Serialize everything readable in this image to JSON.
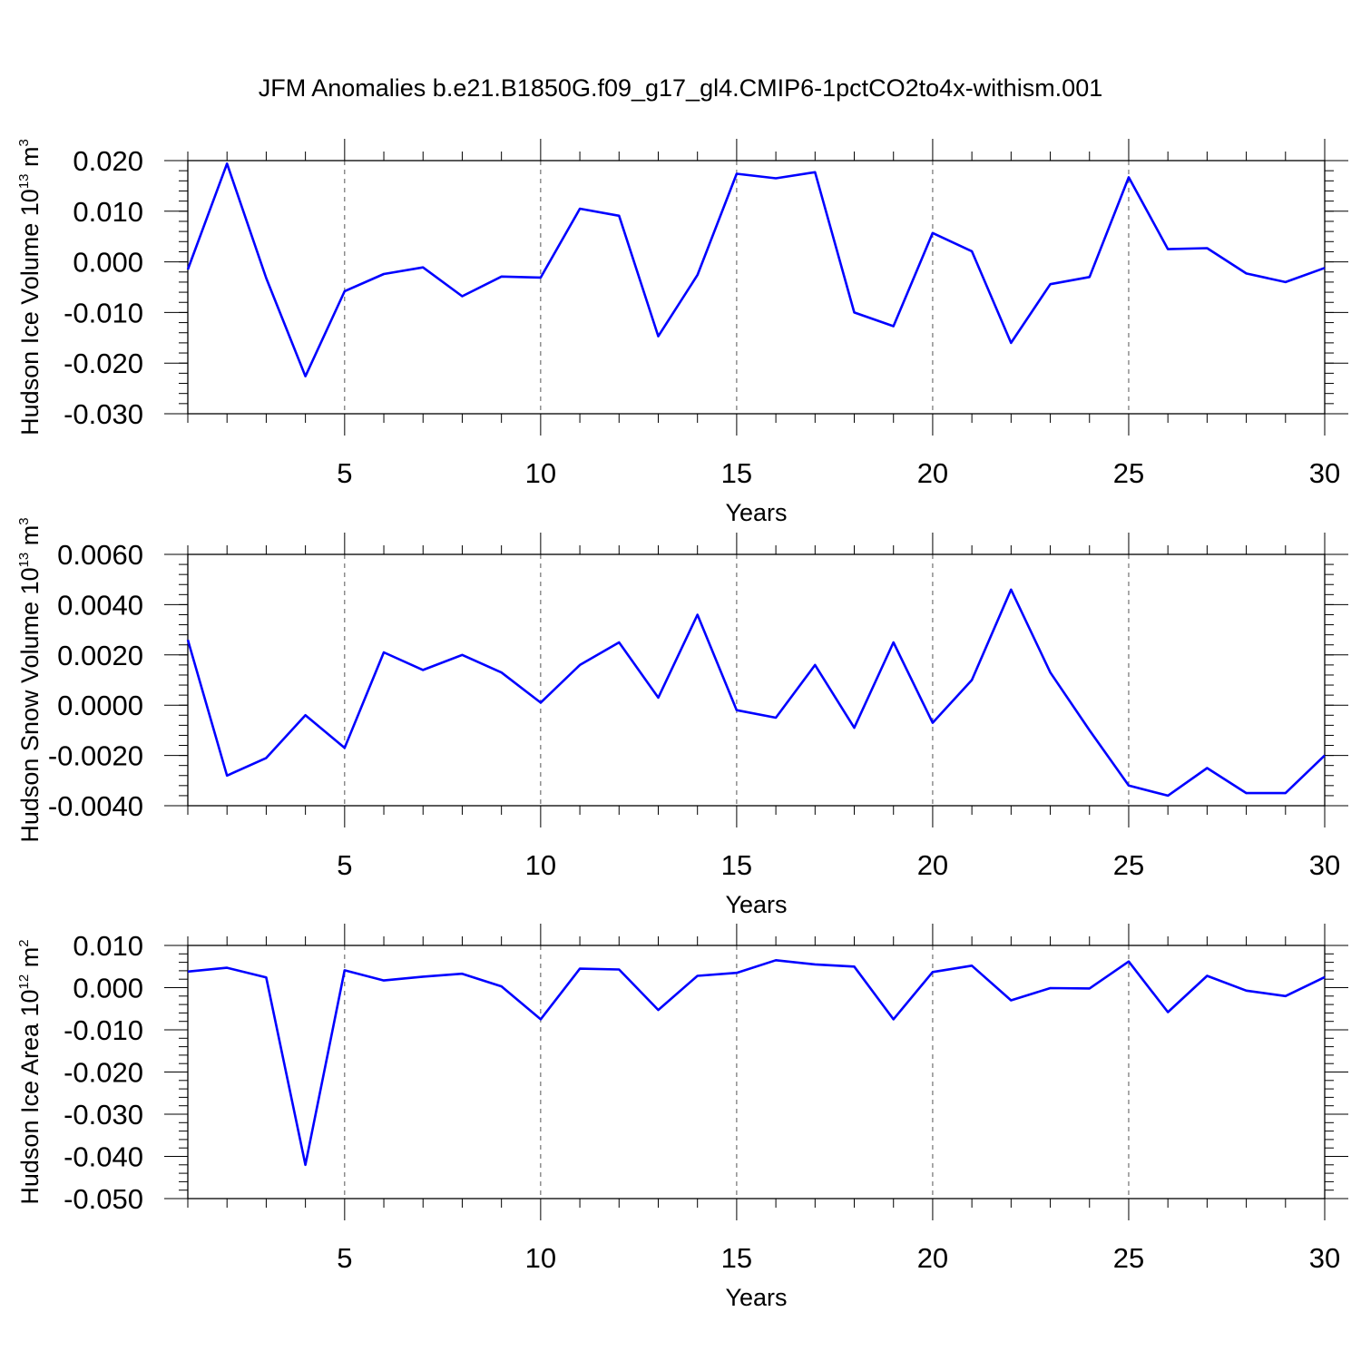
{
  "title": "JFM Anomalies b.e21.B1850G.f09_g17_gl4.CMIP6-1pctCO2to4x-withism.001",
  "colors": {
    "line": "#0000ff",
    "axis": "#000000",
    "grid": "#555555"
  },
  "chart_data": [
    {
      "type": "line",
      "ylabel": {
        "text": "Hudson Ice Volume 10",
        "exp": "13",
        "unit": " m",
        "unit_exp": "3"
      },
      "xlabel": "Years",
      "xlim": [
        1,
        30
      ],
      "ylim": [
        -0.03,
        0.02
      ],
      "x_ticks": [
        5,
        10,
        15,
        20,
        25,
        30
      ],
      "x_tick_labels": [
        "5",
        "10",
        "15",
        "20",
        "25",
        "30"
      ],
      "y_ticks": [
        -0.03,
        -0.02,
        -0.01,
        0.0,
        0.01,
        0.02
      ],
      "y_tick_labels": [
        "-0.030",
        "-0.020",
        "-0.010",
        "0.000",
        "0.010",
        "0.020"
      ],
      "y_minor_step": 0.002,
      "grid_x": [
        5,
        10,
        15,
        20,
        25
      ],
      "series": [
        {
          "name": "Hudson Ice Volume",
          "x": [
            1,
            2,
            3,
            4,
            5,
            6,
            7,
            8,
            9,
            10,
            11,
            12,
            13,
            14,
            15,
            16,
            17,
            18,
            19,
            20,
            21,
            22,
            23,
            24,
            25,
            26,
            27,
            28,
            29,
            30
          ],
          "values": [
            -0.0015,
            0.0194,
            -0.0032,
            -0.0226,
            -0.0058,
            -0.0024,
            -0.0011,
            -0.0068,
            -0.0029,
            -0.0031,
            0.0105,
            0.0091,
            -0.0147,
            -0.0026,
            0.0174,
            0.0165,
            0.0177,
            -0.01,
            -0.0127,
            0.0057,
            0.0021,
            -0.016,
            -0.0044,
            -0.003,
            0.0167,
            0.0025,
            0.0027,
            -0.0023,
            -0.004,
            -0.0012
          ]
        }
      ]
    },
    {
      "type": "line",
      "ylabel": {
        "text": "Hudson Snow Volume 10",
        "exp": "13",
        "unit": " m",
        "unit_exp": "3"
      },
      "xlabel": "Years",
      "xlim": [
        1,
        30
      ],
      "ylim": [
        -0.004,
        0.006
      ],
      "x_ticks": [
        5,
        10,
        15,
        20,
        25,
        30
      ],
      "x_tick_labels": [
        "5",
        "10",
        "15",
        "20",
        "25",
        "30"
      ],
      "y_ticks": [
        -0.004,
        -0.002,
        0.0,
        0.002,
        0.004,
        0.006
      ],
      "y_tick_labels": [
        "-0.0040",
        "-0.0020",
        "0.0000",
        "0.0020",
        "0.0040",
        "0.0060"
      ],
      "y_minor_step": 0.0004,
      "grid_x": [
        5,
        10,
        15,
        20,
        25
      ],
      "series": [
        {
          "name": "Hudson Snow Volume",
          "x": [
            1,
            2,
            3,
            4,
            5,
            6,
            7,
            8,
            9,
            10,
            11,
            12,
            13,
            14,
            15,
            16,
            17,
            18,
            19,
            20,
            21,
            22,
            23,
            24,
            25,
            26,
            27,
            28,
            29,
            30
          ],
          "values": [
            0.0026,
            -0.0028,
            -0.0021,
            -0.0004,
            -0.0017,
            0.0021,
            0.0014,
            0.002,
            0.0013,
            0.0001,
            0.0016,
            0.0025,
            0.0003,
            0.0036,
            -0.0002,
            -0.0005,
            0.0016,
            -0.0009,
            0.0025,
            -0.0007,
            0.001,
            0.0046,
            0.0013,
            -0.001,
            -0.0032,
            -0.0036,
            -0.0025,
            -0.0035,
            -0.0035,
            -0.002
          ]
        }
      ]
    },
    {
      "type": "line",
      "ylabel": {
        "text": "Hudson Ice Area 10",
        "exp": "12",
        "unit": " m",
        "unit_exp": "2"
      },
      "xlabel": "Years",
      "xlim": [
        1,
        30
      ],
      "ylim": [
        -0.05,
        0.01
      ],
      "x_ticks": [
        5,
        10,
        15,
        20,
        25,
        30
      ],
      "x_tick_labels": [
        "5",
        "10",
        "15",
        "20",
        "25",
        "30"
      ],
      "y_ticks": [
        -0.05,
        -0.04,
        -0.03,
        -0.02,
        -0.01,
        0.0,
        0.01
      ],
      "y_tick_labels": [
        "-0.050",
        "-0.040",
        "-0.030",
        "-0.020",
        "-0.010",
        "0.000",
        "0.010"
      ],
      "y_minor_step": 0.002,
      "grid_x": [
        5,
        10,
        15,
        20,
        25
      ],
      "series": [
        {
          "name": "Hudson Ice Area",
          "x": [
            1,
            2,
            3,
            4,
            5,
            6,
            7,
            8,
            9,
            10,
            11,
            12,
            13,
            14,
            15,
            16,
            17,
            18,
            19,
            20,
            21,
            22,
            23,
            24,
            25,
            26,
            27,
            28,
            29,
            30
          ],
          "values": [
            0.0038,
            0.0047,
            0.0024,
            -0.042,
            0.0041,
            0.0017,
            0.0026,
            0.0033,
            0.0003,
            -0.0075,
            0.0045,
            0.0043,
            -0.0053,
            0.0028,
            0.0035,
            0.0065,
            0.0055,
            0.005,
            -0.0075,
            0.0037,
            0.0052,
            -0.003,
            -0.0001,
            -0.0002,
            0.0062,
            -0.0058,
            0.0028,
            -0.0007,
            -0.002,
            0.0025
          ]
        }
      ]
    }
  ]
}
